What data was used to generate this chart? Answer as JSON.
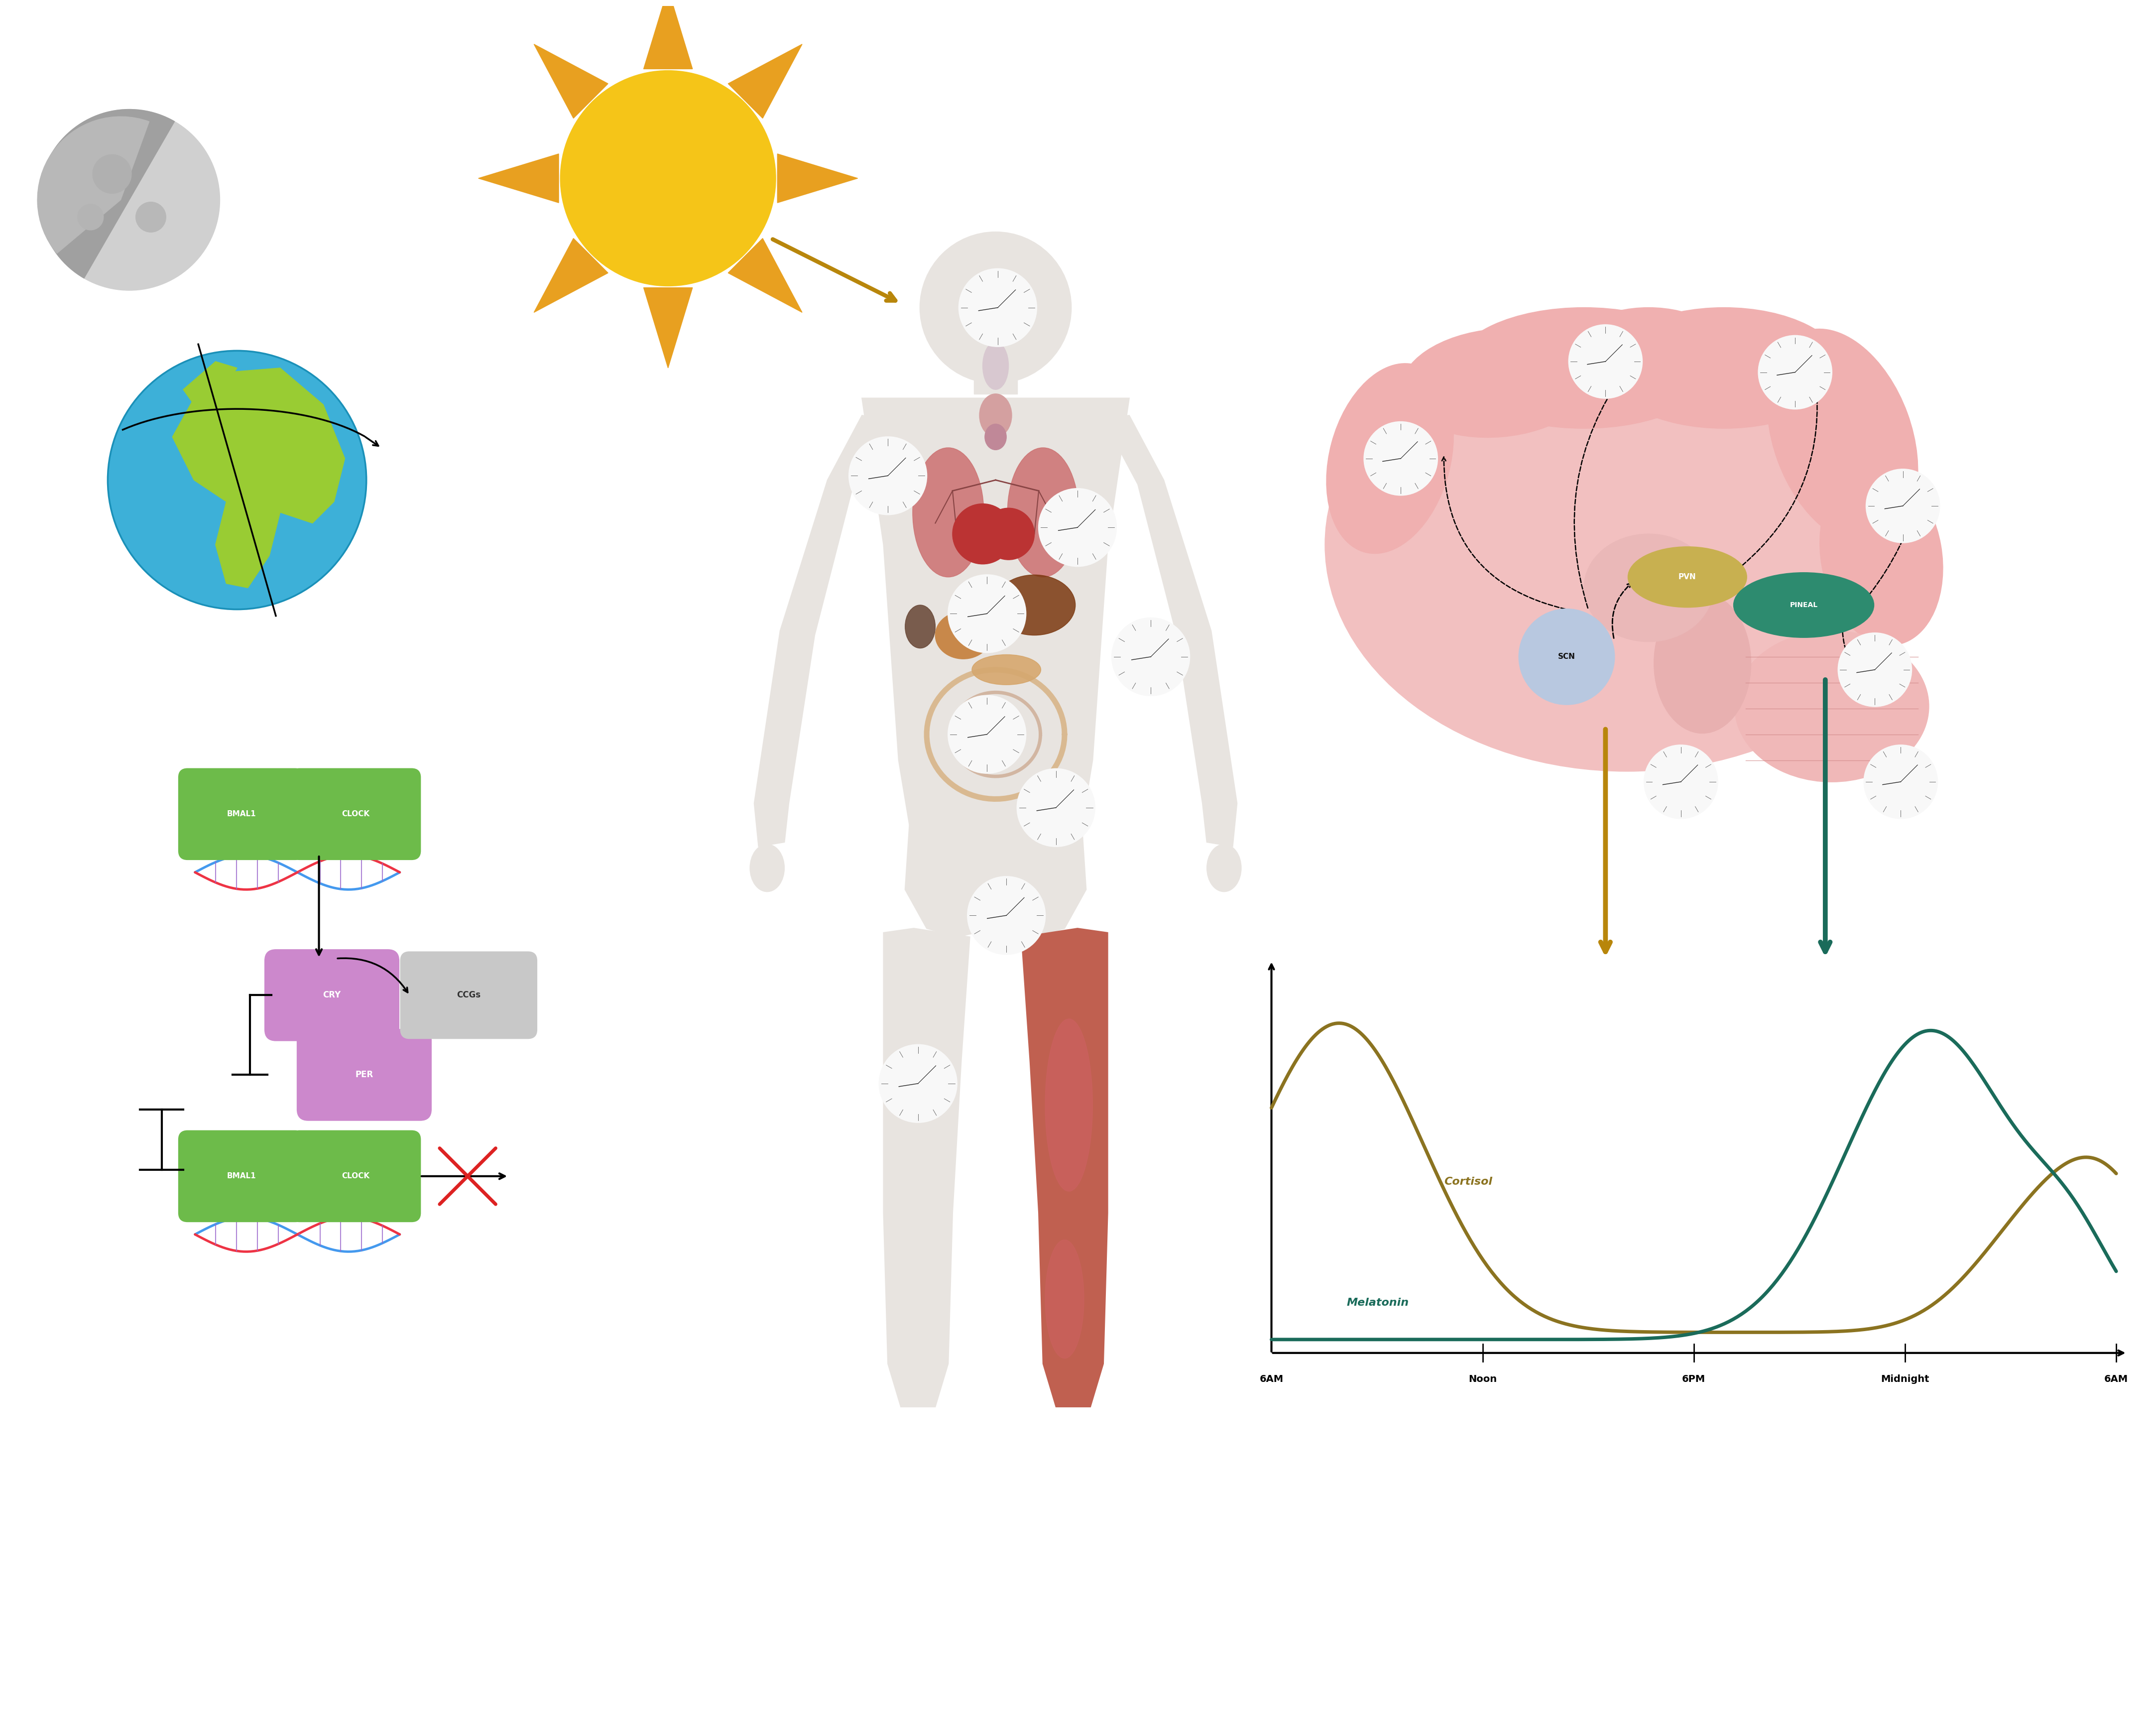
{
  "bg_color": "#ffffff",
  "cortisol_color": "#8B7320",
  "melatonin_color": "#1a6b5a",
  "time_labels": [
    "6AM",
    "Noon",
    "6PM",
    "Midnight",
    "6AM"
  ],
  "graph_title_cortisol": "Cortisol",
  "graph_title_melatonin": "Melatonin",
  "scn_color": "#222222",
  "pvn_color": "#c8b45a",
  "pineal_color": "#2d8b6f",
  "bmal1_color": "#6dbb4a",
  "clock_color": "#6dbb4a",
  "cry_color": "#cc88cc",
  "per_color": "#cc88cc",
  "ccgs_color": "#c8c8c8",
  "dna_blue": "#4499ee",
  "dna_red": "#ee3344",
  "arrow_yellow": "#b8860b",
  "arrow_teal": "#1a6b5a",
  "brain_pink": "#f0b8b8",
  "brain_pink2": "#e8a8a8",
  "earth_ocean": "#3db0d8",
  "earth_land": "#99cc33",
  "moon_color": "#d8d8d8",
  "sun_yellow": "#f5c518",
  "sun_ray": "#e8a020",
  "body_color": "#e8e4e0",
  "body_edge": "#c8c0b8",
  "organ_lung": "#d0888a",
  "organ_heart": "#c04040",
  "organ_liver": "#8B4513",
  "organ_stomach": "#c8964a",
  "organ_intestine": "#d4a870",
  "organ_muscle": "#c06050",
  "clock_bg": "#f8f8f8",
  "clock_edge": "#888888",
  "scn_bg": "#b8c8e0"
}
